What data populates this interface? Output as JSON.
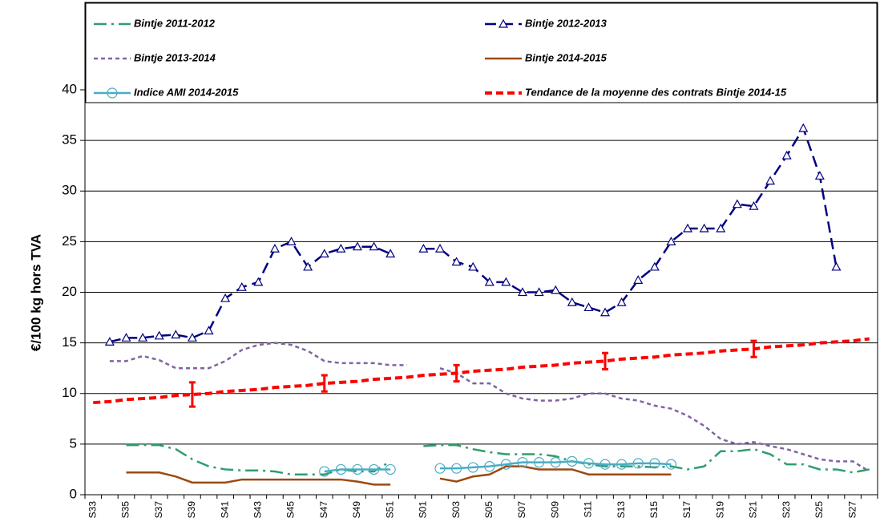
{
  "chart_data": {
    "type": "line",
    "y_label": "€/100 kg hors TVA",
    "categories": [
      "S33",
      null,
      "S35",
      null,
      "S37",
      null,
      "S39",
      null,
      "S41",
      null,
      "S43",
      null,
      "S45",
      null,
      "S47",
      null,
      "S49",
      null,
      "S51",
      null,
      "S01",
      null,
      "S03",
      null,
      "S05",
      null,
      "S07",
      null,
      "S09",
      null,
      "S11",
      null,
      "S13",
      null,
      "S15",
      null,
      "S17",
      null,
      "S19",
      null,
      "S21",
      null,
      "S23",
      null,
      "S25",
      null,
      "S27",
      null
    ],
    "ylim": [
      0,
      40
    ],
    "yticks": [
      0,
      5,
      10,
      15,
      20,
      25,
      30,
      35,
      40
    ],
    "grid": true,
    "legend": "top",
    "series": [
      {
        "name": "Bintje 2011-2012",
        "color": "#2e9e6e",
        "dash": "dashdot",
        "marker": "none",
        "values": [
          null,
          null,
          4.9,
          4.9,
          4.9,
          4.5,
          3.5,
          2.8,
          2.5,
          2.4,
          2.4,
          2.3,
          2.0,
          2.0,
          2.0,
          2.5,
          2.3,
          2.3,
          3.3,
          null,
          4.8,
          4.9,
          4.9,
          4.5,
          4.2,
          4.0,
          4.0,
          4.0,
          3.8,
          3.3,
          3.0,
          2.8,
          2.8,
          2.8,
          2.7,
          2.8,
          2.5,
          2.8,
          4.3,
          4.3,
          4.5,
          4.0,
          3.0,
          3.0,
          2.5,
          2.5,
          2.2,
          2.5
        ]
      },
      {
        "name": "Bintje 2012-2013",
        "color": "#000080",
        "dash": "dashed",
        "marker": "triangle",
        "values": [
          null,
          15.1,
          15.5,
          15.5,
          15.7,
          15.8,
          15.5,
          16.2,
          19.4,
          20.5,
          21.0,
          24.3,
          25.0,
          22.5,
          23.8,
          24.3,
          24.5,
          24.5,
          23.8,
          null,
          24.3,
          24.3,
          23.0,
          22.5,
          21.0,
          21.0,
          20.0,
          20.0,
          20.2,
          19.0,
          18.5,
          18.0,
          19.0,
          21.2,
          22.5,
          25.0,
          26.3,
          26.3,
          26.3,
          28.7,
          28.5,
          31.0,
          33.5,
          36.2,
          31.5,
          22.5,
          null,
          null
        ]
      },
      {
        "name": "Bintje 2013-2014",
        "color": "#8064a2",
        "dash": "dotted",
        "marker": "none",
        "values": [
          null,
          13.2,
          13.2,
          13.7,
          13.3,
          12.5,
          12.5,
          12.5,
          13.2,
          14.3,
          14.8,
          15.0,
          14.8,
          14.2,
          13.2,
          13.0,
          13.0,
          13.0,
          12.8,
          12.8,
          null,
          12.5,
          12.0,
          11.0,
          11.0,
          10.0,
          9.5,
          9.3,
          9.3,
          9.5,
          10.0,
          10.0,
          9.5,
          9.3,
          8.8,
          8.5,
          7.8,
          6.8,
          5.5,
          5.0,
          5.2,
          4.8,
          4.5,
          4.0,
          3.5,
          3.3,
          3.3,
          2.3
        ]
      },
      {
        "name": "Bintje 2014-2015",
        "color": "#9c4a10",
        "dash": "solid",
        "marker": "none",
        "values": [
          null,
          null,
          2.2,
          2.2,
          2.2,
          1.8,
          1.2,
          1.2,
          1.2,
          1.5,
          1.5,
          1.5,
          1.5,
          1.5,
          1.5,
          1.5,
          1.3,
          1.0,
          1.0,
          null,
          null,
          1.6,
          1.3,
          1.8,
          2.0,
          2.8,
          2.8,
          2.5,
          2.5,
          2.5,
          2.0,
          2.0,
          2.0,
          2.0,
          2.0,
          2.0,
          null,
          null,
          null,
          null,
          null,
          null,
          null,
          null,
          null,
          null,
          null,
          null
        ]
      },
      {
        "name": "Indice AMI 2014-2015",
        "color": "#4bacc6",
        "dash": "solid",
        "marker": "circle",
        "values": [
          null,
          null,
          null,
          null,
          null,
          null,
          null,
          null,
          null,
          null,
          null,
          null,
          null,
          null,
          2.3,
          2.5,
          2.5,
          2.5,
          2.5,
          null,
          null,
          2.6,
          2.6,
          2.7,
          2.8,
          3.0,
          3.2,
          3.2,
          3.2,
          3.3,
          3.1,
          3.0,
          3.0,
          3.1,
          3.1,
          3.0,
          null,
          null,
          null,
          null,
          null,
          null,
          null,
          null,
          null,
          null,
          null,
          null
        ]
      },
      {
        "name": "Tendance de la moyenne des contrats Bintje 2014-15",
        "color": "#ff0000",
        "dash": "bold",
        "marker": "none",
        "values": [
          9.1,
          9.2,
          9.4,
          9.5,
          9.6,
          9.8,
          9.9,
          10.0,
          10.2,
          10.3,
          10.4,
          10.6,
          10.7,
          10.8,
          11.0,
          11.1,
          11.2,
          11.4,
          11.5,
          11.6,
          11.8,
          11.9,
          12.0,
          12.2,
          12.3,
          12.4,
          12.6,
          12.7,
          12.8,
          13.0,
          13.1,
          13.2,
          13.4,
          13.5,
          13.6,
          13.8,
          13.9,
          14.0,
          14.2,
          14.3,
          14.4,
          14.6,
          14.7,
          14.8,
          15.0,
          15.1,
          15.2,
          15.4
        ],
        "errors": [
          null,
          null,
          null,
          null,
          null,
          null,
          1.2,
          null,
          null,
          null,
          null,
          null,
          null,
          null,
          0.8,
          null,
          null,
          null,
          null,
          null,
          null,
          null,
          0.8,
          null,
          null,
          null,
          null,
          null,
          null,
          null,
          null,
          0.8,
          null,
          null,
          null,
          null,
          null,
          null,
          null,
          null,
          0.8,
          null,
          null,
          null,
          null,
          null,
          null,
          null
        ]
      }
    ]
  }
}
